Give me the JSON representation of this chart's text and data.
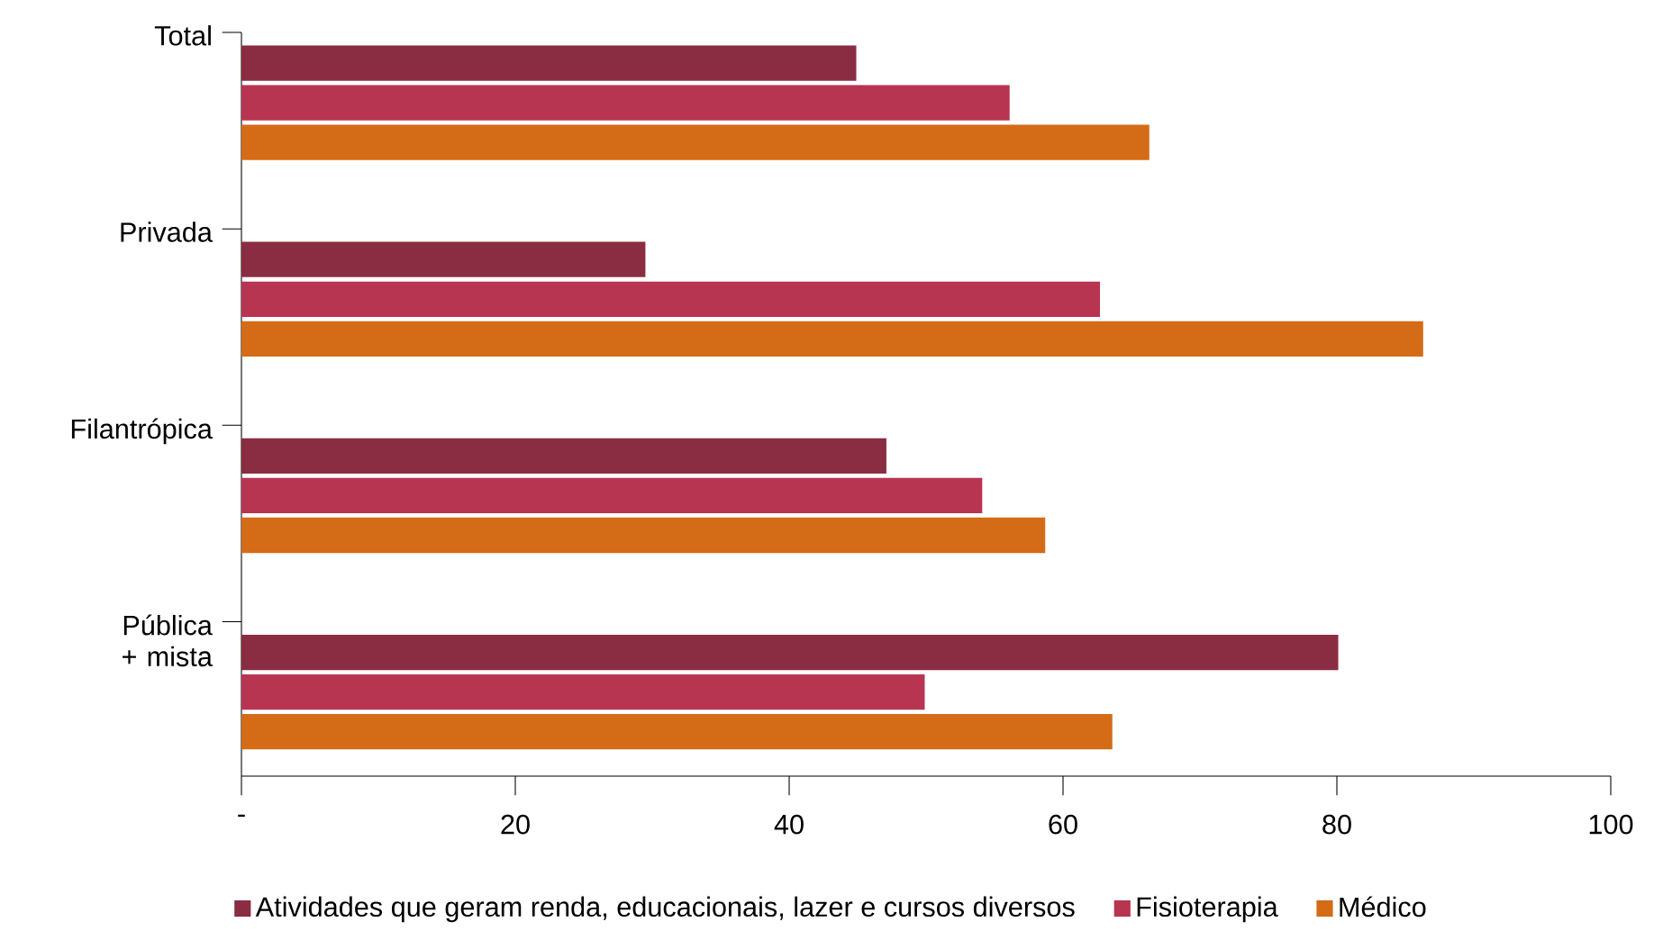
{
  "chart_data": {
    "type": "bar",
    "orientation": "horizontal",
    "categories": [
      "Total",
      "Privada",
      "Filantrópica",
      "Pública + mista"
    ],
    "series": [
      {
        "name": "Atividades que geram renda, educacionais, lazer e cursos diversos",
        "color": "#8b2d42",
        "values": [
          44.9,
          29.5,
          47.1,
          80.1
        ]
      },
      {
        "name": "Fisioterapia",
        "color": "#b83552",
        "values": [
          56.1,
          62.7,
          54.1,
          49.9
        ]
      },
      {
        "name": "Médico",
        "color": "#d46b17",
        "values": [
          66.3,
          86.3,
          58.7,
          63.6
        ]
      }
    ],
    "xlim": [
      0,
      100
    ],
    "xticks": [
      {
        "value": 0,
        "label": "-"
      },
      20,
      40,
      60,
      80,
      100
    ],
    "legend": "bottom"
  }
}
